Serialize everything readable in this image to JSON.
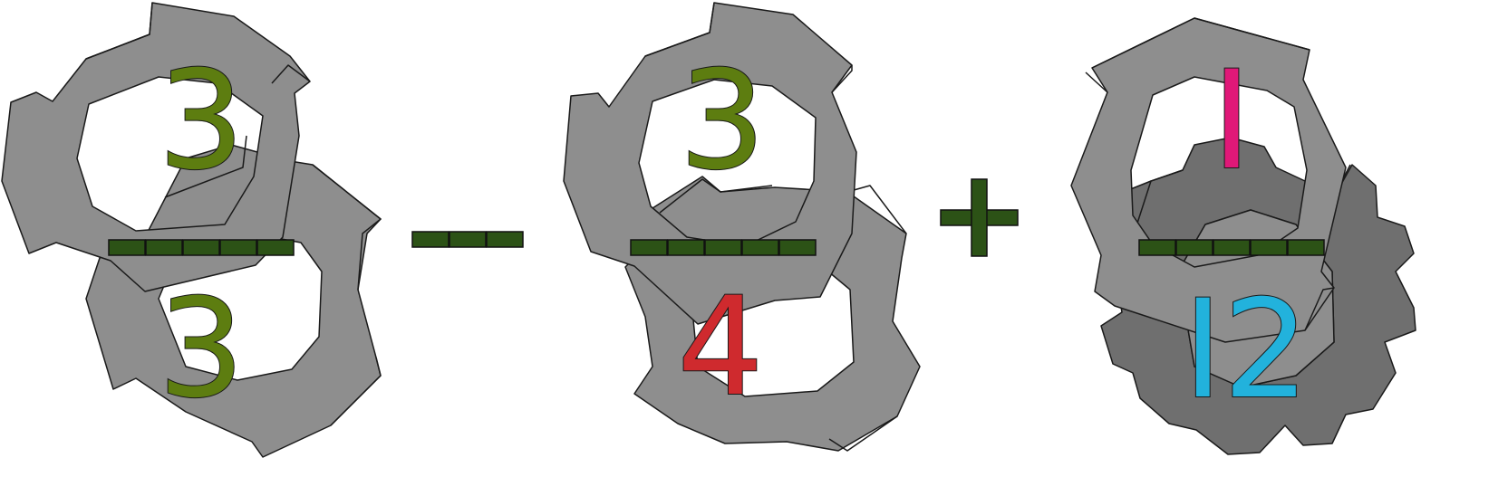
{
  "colors": {
    "gear": "#8e8e8e",
    "fraction_bar": "#2c5216",
    "operator": "#2c5216",
    "olive": "#5d7d10",
    "red": "#cf2a2e",
    "magenta": "#e01878",
    "cyan": "#22b2dc"
  },
  "terms": [
    {
      "numerator": "3",
      "denominator": "3",
      "numerator_color": "olive",
      "denominator_color": "olive",
      "bar_segments": 5
    },
    {
      "numerator": "3",
      "denominator": "4",
      "numerator_color": "olive",
      "denominator_color": "red",
      "bar_segments": 5
    },
    {
      "numerator": "I",
      "denominator": "I2",
      "numerator_color": "magenta",
      "denominator_color": "cyan",
      "bar_segments": 5
    }
  ],
  "operators": [
    {
      "symbol": "minus",
      "segments": 3
    },
    {
      "symbol": "plus"
    }
  ]
}
